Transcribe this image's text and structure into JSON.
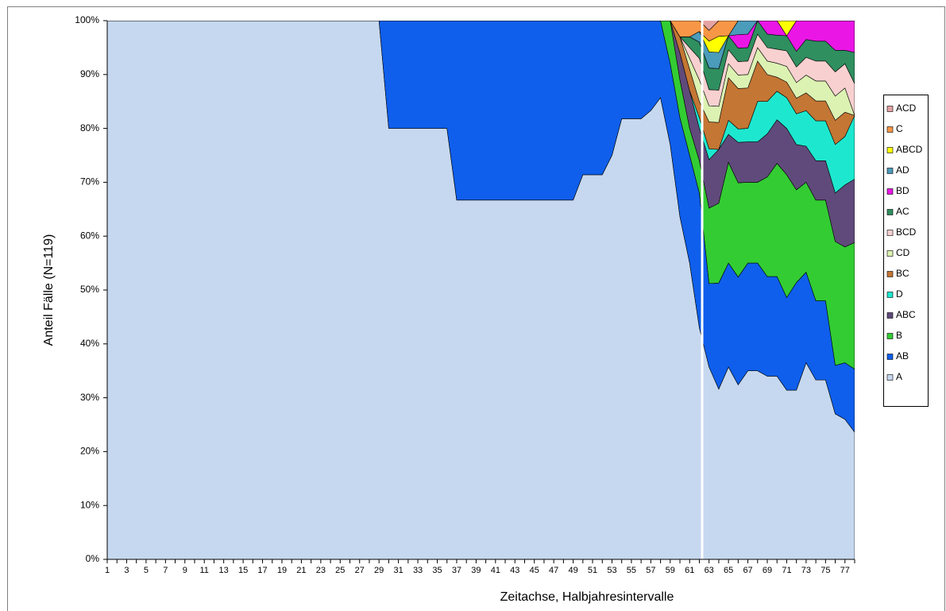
{
  "chart_data": {
    "type": "stacked_area",
    "x_label": "Zeitachse, Halbjahresintervalle",
    "y_label": "Anteil Fälle (N=119)",
    "categories": [
      1,
      null,
      3,
      null,
      5,
      null,
      7,
      null,
      9,
      null,
      11,
      null,
      13,
      null,
      15,
      null,
      17,
      null,
      19,
      null,
      21,
      null,
      23,
      null,
      25,
      null,
      27,
      null,
      29,
      null,
      31,
      null,
      33,
      null,
      35,
      null,
      37,
      null,
      39,
      null,
      41,
      null,
      43,
      null,
      45,
      null,
      47,
      null,
      49,
      null,
      51,
      null,
      53,
      null,
      55,
      null,
      57,
      null,
      59,
      null,
      61,
      null,
      63,
      null,
      65,
      null,
      67,
      null,
      69,
      null,
      71,
      null,
      73,
      null,
      75,
      null,
      77,
      null
    ],
    "ylim": [
      0,
      100
    ],
    "yticks": [
      {
        "value": 0,
        "label": "0%"
      },
      {
        "value": 10,
        "label": "10%"
      },
      {
        "value": 20,
        "label": "20%"
      },
      {
        "value": 30,
        "label": "30%"
      },
      {
        "value": 40,
        "label": "40%"
      },
      {
        "value": 50,
        "label": "50%"
      },
      {
        "value": 60,
        "label": "60%"
      },
      {
        "value": 70,
        "label": "70%"
      },
      {
        "value": 80,
        "label": "80%"
      },
      {
        "value": 90,
        "label": "90%"
      },
      {
        "value": 100,
        "label": "100%"
      }
    ],
    "legend": "right",
    "series": [
      {
        "name": "A",
        "color": "#c6d8ef",
        "values": [
          100,
          100,
          100,
          100,
          100,
          100,
          100,
          100,
          100,
          100,
          100,
          100,
          100,
          100,
          100,
          100,
          100,
          100,
          100,
          100,
          100,
          100,
          100,
          100,
          100,
          100,
          100,
          100,
          100,
          80,
          80,
          80,
          80,
          80,
          80,
          80,
          66.7,
          66.7,
          66.7,
          66.7,
          66.7,
          66.7,
          66.7,
          66.7,
          66.7,
          66.7,
          66.7,
          66.7,
          66.7,
          71.4,
          71.4,
          71.4,
          75,
          81.8,
          81.8,
          81.8,
          83.3,
          85.7,
          77,
          63.6,
          55,
          43,
          35.7,
          31.6,
          35.7,
          32.4,
          35,
          35,
          34,
          34,
          31.4,
          31.4,
          36.5,
          33.3,
          33.3,
          27,
          26,
          23.6
        ]
      },
      {
        "name": "AB",
        "color": "#0f5fec",
        "values": [
          0,
          0,
          0,
          0,
          0,
          0,
          0,
          0,
          0,
          0,
          0,
          0,
          0,
          0,
          0,
          0,
          0,
          0,
          0,
          0,
          0,
          0,
          0,
          0,
          0,
          0,
          0,
          0,
          0,
          20,
          20,
          20,
          20,
          20,
          20,
          20,
          33.3,
          33.3,
          33.3,
          33.3,
          33.3,
          33.3,
          33.3,
          33.3,
          33.3,
          33.3,
          33.3,
          33.3,
          33.3,
          28.6,
          28.6,
          28.6,
          25,
          18.2,
          18.2,
          18.2,
          16.7,
          14.3,
          15,
          18.4,
          20,
          25,
          15.5,
          19.7,
          19.3,
          20,
          20,
          20,
          18.5,
          18.5,
          17.2,
          20,
          16.8,
          14.7,
          14.7,
          9,
          10.5,
          11.7
        ]
      },
      {
        "name": "B",
        "color": "#33cc33",
        "values": [
          0,
          0,
          0,
          0,
          0,
          0,
          0,
          0,
          0,
          0,
          0,
          0,
          0,
          0,
          0,
          0,
          0,
          0,
          0,
          0,
          0,
          0,
          0,
          0,
          0,
          0,
          0,
          0,
          0,
          0,
          0,
          0,
          0,
          0,
          0,
          0,
          0,
          0,
          0,
          0,
          0,
          0,
          0,
          0,
          0,
          0,
          0,
          0,
          0,
          0,
          0,
          0,
          0,
          0,
          0,
          0,
          0,
          0,
          8,
          7,
          5,
          6,
          14,
          14.8,
          18.7,
          17.5,
          15,
          15,
          18.5,
          21,
          22.8,
          17.2,
          16.7,
          18.7,
          18.7,
          23,
          21.5,
          23.5
        ]
      },
      {
        "name": "ABC",
        "color": "#604a7b",
        "values": [
          0,
          0,
          0,
          0,
          0,
          0,
          0,
          0,
          0,
          0,
          0,
          0,
          0,
          0,
          0,
          0,
          0,
          0,
          0,
          0,
          0,
          0,
          0,
          0,
          0,
          0,
          0,
          0,
          0,
          0,
          0,
          0,
          0,
          0,
          0,
          0,
          0,
          0,
          0,
          0,
          0,
          0,
          0,
          0,
          0,
          0,
          0,
          0,
          0,
          0,
          0,
          0,
          0,
          0,
          0,
          0,
          0,
          0,
          0,
          5,
          7,
          6,
          9,
          10,
          5.2,
          7.5,
          7.5,
          7.5,
          8,
          8.1,
          8.6,
          8.4,
          6.7,
          7.3,
          7.3,
          9,
          11.5,
          11.8
        ]
      },
      {
        "name": "D",
        "color": "#1de8cf",
        "values": [
          0,
          0,
          0,
          0,
          0,
          0,
          0,
          0,
          0,
          0,
          0,
          0,
          0,
          0,
          0,
          0,
          0,
          0,
          0,
          0,
          0,
          0,
          0,
          0,
          0,
          0,
          0,
          0,
          0,
          0,
          0,
          0,
          0,
          0,
          0,
          0,
          0,
          0,
          0,
          0,
          0,
          0,
          0,
          0,
          0,
          0,
          0,
          0,
          0,
          0,
          0,
          0,
          0,
          0,
          0,
          0,
          0,
          0,
          0,
          0,
          0,
          2,
          2,
          0,
          2.6,
          2.5,
          2.5,
          7.5,
          6,
          5.3,
          5.7,
          5.7,
          6.6,
          7.4,
          7.4,
          9,
          9,
          11.8
        ]
      },
      {
        "name": "BC",
        "color": "#c47634",
        "values": [
          0,
          0,
          0,
          0,
          0,
          0,
          0,
          0,
          0,
          0,
          0,
          0,
          0,
          0,
          0,
          0,
          0,
          0,
          0,
          0,
          0,
          0,
          0,
          0,
          0,
          0,
          0,
          0,
          0,
          0,
          0,
          0,
          0,
          0,
          0,
          0,
          0,
          0,
          0,
          0,
          0,
          0,
          0,
          0,
          0,
          0,
          0,
          0,
          0,
          0,
          0,
          0,
          0,
          0,
          0,
          0,
          0,
          0,
          0,
          3,
          4,
          3,
          5,
          5,
          7.9,
          7.5,
          7.5,
          7.5,
          5,
          2.6,
          2.9,
          2.9,
          3.3,
          3.7,
          3.7,
          4.5,
          4.5,
          0
        ]
      },
      {
        "name": "CD",
        "color": "#dcf2b2",
        "values": [
          0,
          0,
          0,
          0,
          0,
          0,
          0,
          0,
          0,
          0,
          0,
          0,
          0,
          0,
          0,
          0,
          0,
          0,
          0,
          0,
          0,
          0,
          0,
          0,
          0,
          0,
          0,
          0,
          0,
          0,
          0,
          0,
          0,
          0,
          0,
          0,
          0,
          0,
          0,
          0,
          0,
          0,
          0,
          0,
          0,
          0,
          0,
          0,
          0,
          0,
          0,
          0,
          0,
          0,
          0,
          0,
          0,
          0,
          0,
          0,
          2,
          4,
          3,
          3,
          2.6,
          2.5,
          2.5,
          2.5,
          2.5,
          2.6,
          2.9,
          2.9,
          3.3,
          3.7,
          3.7,
          4.5,
          4.5,
          0
        ]
      },
      {
        "name": "BCD",
        "color": "#f8d0d0",
        "values": [
          0,
          0,
          0,
          0,
          0,
          0,
          0,
          0,
          0,
          0,
          0,
          0,
          0,
          0,
          0,
          0,
          0,
          0,
          0,
          0,
          0,
          0,
          0,
          0,
          0,
          0,
          0,
          0,
          0,
          0,
          0,
          0,
          0,
          0,
          0,
          0,
          0,
          0,
          0,
          0,
          0,
          0,
          0,
          0,
          0,
          0,
          0,
          0,
          0,
          0,
          0,
          0,
          0,
          0,
          0,
          0,
          0,
          0,
          0,
          0,
          2,
          4,
          3,
          3,
          2.6,
          2.5,
          2.5,
          2.5,
          2.5,
          2.6,
          2.9,
          2.9,
          3.3,
          3.7,
          3.7,
          4.5,
          4.5,
          5.9
        ]
      },
      {
        "name": "AC",
        "color": "#2f8f5f",
        "values": [
          0,
          0,
          0,
          0,
          0,
          0,
          0,
          0,
          0,
          0,
          0,
          0,
          0,
          0,
          0,
          0,
          0,
          0,
          0,
          0,
          0,
          0,
          0,
          0,
          0,
          0,
          0,
          0,
          0,
          0,
          0,
          0,
          0,
          0,
          0,
          0,
          0,
          0,
          0,
          0,
          0,
          0,
          0,
          0,
          0,
          0,
          0,
          0,
          0,
          0,
          0,
          0,
          0,
          0,
          0,
          0,
          0,
          0,
          0,
          0,
          2,
          3,
          4,
          4,
          2.6,
          2.5,
          2.5,
          2.5,
          2.5,
          2.6,
          2.8,
          2.9,
          3.3,
          3.7,
          3.7,
          4,
          2.5,
          5.8
        ]
      },
      {
        "name": "BD",
        "color": "#ea16e6",
        "values": [
          0,
          0,
          0,
          0,
          0,
          0,
          0,
          0,
          0,
          0,
          0,
          0,
          0,
          0,
          0,
          0,
          0,
          0,
          0,
          0,
          0,
          0,
          0,
          0,
          0,
          0,
          0,
          0,
          0,
          0,
          0,
          0,
          0,
          0,
          0,
          0,
          0,
          0,
          0,
          0,
          0,
          0,
          0,
          0,
          0,
          0,
          0,
          0,
          0,
          0,
          0,
          0,
          0,
          0,
          0,
          0,
          0,
          0,
          0,
          0,
          0,
          0,
          0,
          0,
          0,
          2.5,
          2.5,
          0,
          2.5,
          2.7,
          0,
          5.7,
          3.5,
          3.8,
          3.8,
          5.5,
          5.5,
          5.9
        ]
      },
      {
        "name": "AD",
        "color": "#4b9bba",
        "values": [
          0,
          0,
          0,
          0,
          0,
          0,
          0,
          0,
          0,
          0,
          0,
          0,
          0,
          0,
          0,
          0,
          0,
          0,
          0,
          0,
          0,
          0,
          0,
          0,
          0,
          0,
          0,
          0,
          0,
          0,
          0,
          0,
          0,
          0,
          0,
          0,
          0,
          0,
          0,
          0,
          0,
          0,
          0,
          0,
          0,
          0,
          0,
          0,
          0,
          0,
          0,
          0,
          0,
          0,
          0,
          0,
          0,
          0,
          0,
          0,
          0,
          2,
          3,
          3,
          0,
          2.6,
          2.5,
          0,
          0,
          0,
          0,
          0,
          0,
          0,
          0,
          0,
          0,
          0
        ]
      },
      {
        "name": "ABCD",
        "color": "#ffff00",
        "values": [
          0,
          0,
          0,
          0,
          0,
          0,
          0,
          0,
          0,
          0,
          0,
          0,
          0,
          0,
          0,
          0,
          0,
          0,
          0,
          0,
          0,
          0,
          0,
          0,
          0,
          0,
          0,
          0,
          0,
          0,
          0,
          0,
          0,
          0,
          0,
          0,
          0,
          0,
          0,
          0,
          0,
          0,
          0,
          0,
          0,
          0,
          0,
          0,
          0,
          0,
          0,
          0,
          0,
          0,
          0,
          0,
          0,
          0,
          0,
          0,
          0,
          0,
          2,
          3,
          0,
          0,
          0,
          0,
          0,
          0,
          2.8,
          0,
          0,
          0,
          0,
          0,
          0,
          0
        ]
      },
      {
        "name": "C",
        "color": "#f79646",
        "values": [
          0,
          0,
          0,
          0,
          0,
          0,
          0,
          0,
          0,
          0,
          0,
          0,
          0,
          0,
          0,
          0,
          0,
          0,
          0,
          0,
          0,
          0,
          0,
          0,
          0,
          0,
          0,
          0,
          0,
          0,
          0,
          0,
          0,
          0,
          0,
          0,
          0,
          0,
          0,
          0,
          0,
          0,
          0,
          0,
          0,
          0,
          0,
          0,
          0,
          0,
          0,
          0,
          0,
          0,
          0,
          0,
          0,
          0,
          0,
          3,
          3,
          2,
          2,
          2.9,
          2.8,
          0,
          0,
          0,
          0,
          0,
          0,
          0,
          0,
          0,
          0,
          0,
          0,
          0
        ]
      },
      {
        "name": "ACD",
        "color": "#e6a3a3",
        "values": [
          0,
          0,
          0,
          0,
          0,
          0,
          0,
          0,
          0,
          0,
          0,
          0,
          0,
          0,
          0,
          0,
          0,
          0,
          0,
          0,
          0,
          0,
          0,
          0,
          0,
          0,
          0,
          0,
          0,
          0,
          0,
          0,
          0,
          0,
          0,
          0,
          0,
          0,
          0,
          0,
          0,
          0,
          0,
          0,
          0,
          0,
          0,
          0,
          0,
          0,
          0,
          0,
          0,
          0,
          0,
          0,
          0,
          0,
          0,
          0,
          0,
          0,
          2,
          0,
          0,
          0,
          0,
          0,
          0,
          0,
          0,
          0,
          0,
          0,
          0,
          0,
          0,
          0
        ]
      }
    ]
  }
}
